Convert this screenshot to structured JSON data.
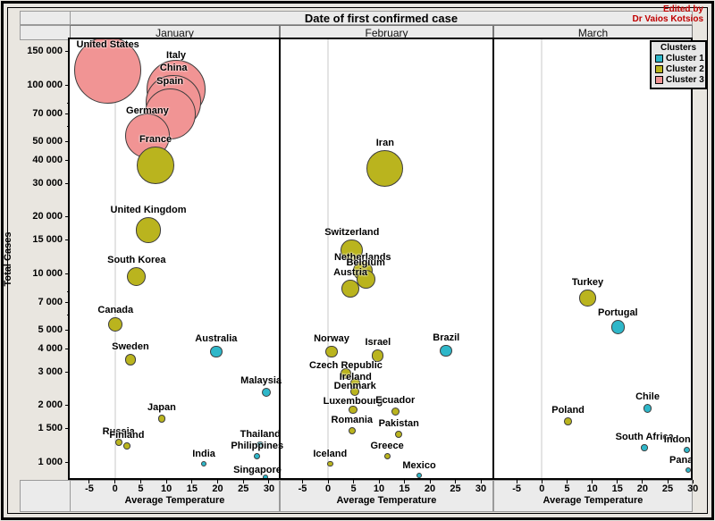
{
  "meta": {
    "edited_by_line1": "Edited by",
    "edited_by_line2": "Dr Vaios Kotsios"
  },
  "chart_data": {
    "type": "bubble",
    "title": "Date of first confirmed case",
    "xlabel": "Average Temperature",
    "ylabel": "Total Cases",
    "x_axis": {
      "ticks": [
        -5,
        0,
        5,
        10,
        15,
        20,
        25,
        30
      ],
      "range": [
        -9,
        32
      ]
    },
    "y_axis": {
      "scale": "log",
      "ticks": [
        150000,
        100000,
        70000,
        50000,
        40000,
        30000,
        20000,
        15000,
        10000,
        7000,
        5000,
        4000,
        3000,
        2000,
        1500,
        1000
      ],
      "minor_ticks": [
        80000,
        60000,
        8000,
        6000
      ],
      "range": [
        800,
        160000
      ]
    },
    "legend": {
      "title": "Clusters",
      "position": "top-right",
      "entries": [
        {
          "label": "Cluster 1",
          "color": "#2eb7c9"
        },
        {
          "label": "Cluster 2",
          "color": "#bab41e"
        },
        {
          "label": "Cluster 3",
          "color": "#f19494"
        }
      ]
    },
    "panels": [
      {
        "label": "January",
        "points": [
          {
            "country": "United States",
            "cluster": 3,
            "temp": -1.4,
            "cases": 120000,
            "ldy": 17
          },
          {
            "country": "Italy",
            "cluster": 3,
            "temp": 11.9,
            "cases": 95000,
            "ldy": 3
          },
          {
            "country": "China",
            "cluster": 3,
            "temp": 11.4,
            "cases": 81000
          },
          {
            "country": "Spain",
            "cluster": 3,
            "temp": 10.7,
            "cases": 70000
          },
          {
            "country": "Germany",
            "cluster": 3,
            "temp": 6.3,
            "cases": 54000,
            "ldy": 5
          },
          {
            "country": "France",
            "cluster": 2,
            "temp": 7.9,
            "cases": 37500
          },
          {
            "country": "United Kingdom",
            "cluster": 2,
            "temp": 6.5,
            "cases": 17000
          },
          {
            "country": "South Korea",
            "cluster": 2,
            "temp": 4.2,
            "cases": 9600
          },
          {
            "country": "Canada",
            "cluster": 2,
            "temp": 0.1,
            "cases": 5400
          },
          {
            "country": "Australia",
            "cluster": 1,
            "temp": 19.7,
            "cases": 3850
          },
          {
            "country": "Sweden",
            "cluster": 2,
            "temp": 3.0,
            "cases": 3500
          },
          {
            "country": "Malaysia",
            "cluster": 1,
            "temp": 29.5,
            "cases": 2350,
            "ldx": -6
          },
          {
            "country": "Japan",
            "cluster": 2,
            "temp": 9.1,
            "cases": 1700
          },
          {
            "country": "Russia",
            "cluster": 2,
            "temp": 0.7,
            "cases": 1270
          },
          {
            "country": "Thailand",
            "cluster": 1,
            "temp": 28.3,
            "cases": 1240
          },
          {
            "country": "Finland",
            "cluster": 2,
            "temp": 2.3,
            "cases": 1220
          },
          {
            "country": "Philippines",
            "cluster": 1,
            "temp": 27.7,
            "cases": 1080
          },
          {
            "country": "India",
            "cluster": 1,
            "temp": 17.3,
            "cases": 980
          },
          {
            "country": "Singapore",
            "cluster": 1,
            "temp": 29.3,
            "cases": 830,
            "ldx": -9,
            "ldy": 3
          }
        ]
      },
      {
        "label": "February",
        "points": [
          {
            "country": "Iran",
            "cluster": 2,
            "temp": 11.2,
            "cases": 36000
          },
          {
            "country": "Switzerland",
            "cluster": 2,
            "temp": 4.7,
            "cases": 13300
          },
          {
            "country": "Netherlands",
            "cluster": 2,
            "temp": 6.8,
            "cases": 10300,
            "ldy": 4
          },
          {
            "country": "Belgium",
            "cluster": 2,
            "temp": 7.4,
            "cases": 9300
          },
          {
            "country": "Austria",
            "cluster": 2,
            "temp": 4.4,
            "cases": 8300
          },
          {
            "country": "Brazil",
            "cluster": 1,
            "temp": 23.2,
            "cases": 3900
          },
          {
            "country": "Norway",
            "cluster": 2,
            "temp": 0.7,
            "cases": 3850
          },
          {
            "country": "Israel",
            "cluster": 2,
            "temp": 9.8,
            "cases": 3670
          },
          {
            "country": "Czech Republic",
            "cluster": 2,
            "temp": 3.5,
            "cases": 2950,
            "ldy": 5
          },
          {
            "country": "Ireland",
            "cluster": 2,
            "temp": 5.4,
            "cases": 2620,
            "ldy": 7
          },
          {
            "country": "Denmark",
            "cluster": 2,
            "temp": 5.3,
            "cases": 2370,
            "ldy": 7
          },
          {
            "country": "Luxembourg",
            "cluster": 2,
            "temp": 4.9,
            "cases": 1900,
            "ldy": 3
          },
          {
            "country": "Ecuador",
            "cluster": 2,
            "temp": 13.2,
            "cases": 1850
          },
          {
            "country": "Romania",
            "cluster": 2,
            "temp": 4.7,
            "cases": 1470
          },
          {
            "country": "Pakistan",
            "cluster": 2,
            "temp": 13.9,
            "cases": 1400
          },
          {
            "country": "Greece",
            "cluster": 2,
            "temp": 11.6,
            "cases": 1070
          },
          {
            "country": "Iceland",
            "cluster": 2,
            "temp": 0.4,
            "cases": 980
          },
          {
            "country": "Mexico",
            "cluster": 1,
            "temp": 17.9,
            "cases": 850
          }
        ]
      },
      {
        "label": "March",
        "points": [
          {
            "country": "Turkey",
            "cluster": 2,
            "temp": 9.1,
            "cases": 7400
          },
          {
            "country": "Portugal",
            "cluster": 1,
            "temp": 15.1,
            "cases": 5200
          },
          {
            "country": "Chile",
            "cluster": 1,
            "temp": 21.0,
            "cases": 1930
          },
          {
            "country": "Poland",
            "cluster": 2,
            "temp": 5.2,
            "cases": 1640
          },
          {
            "country": "South Africa",
            "cluster": 1,
            "temp": 20.4,
            "cases": 1190
          },
          {
            "country": "Indonesia",
            "cluster": 1,
            "temp": 28.8,
            "cases": 1160
          },
          {
            "country": "Panama",
            "cluster": 1,
            "temp": 29.1,
            "cases": 910
          }
        ]
      }
    ]
  }
}
